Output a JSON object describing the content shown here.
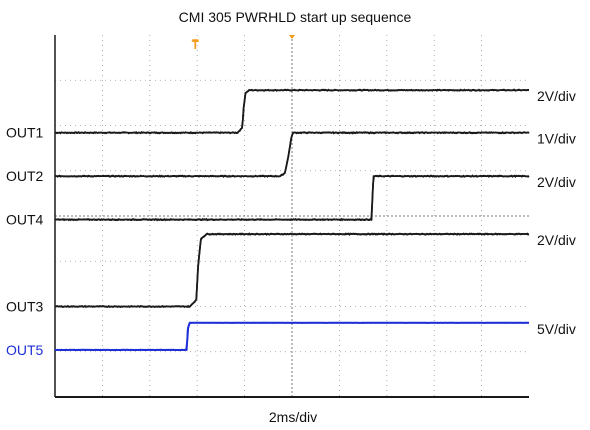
{
  "chart_data": {
    "type": "line",
    "title": "CMI 305  PWRHLD start up sequence",
    "xlabel": "2ms/div",
    "ylabel": "",
    "x_unit": "div",
    "y_unit": "div",
    "xlim": [
      0,
      10
    ],
    "ylim": [
      0,
      8
    ],
    "grid": true,
    "trigger_marker": "T",
    "series": [
      {
        "name": "OUT1",
        "scale": "2V/div",
        "color": "#1a1a1a",
        "noise": 0.012,
        "x": [
          0,
          3.85,
          3.95,
          3.98,
          4.02,
          4.1,
          10
        ],
        "y": [
          5.84,
          5.84,
          5.95,
          6.4,
          6.72,
          6.78,
          6.78
        ]
      },
      {
        "name": "OUT2",
        "scale": "1V/div",
        "color": "#1a1a1a",
        "noise": 0.012,
        "x": [
          0,
          4.75,
          4.85,
          4.92,
          4.98,
          5.02,
          10
        ],
        "y": [
          4.88,
          4.88,
          4.95,
          5.3,
          5.7,
          5.84,
          5.84
        ]
      },
      {
        "name": "OUT4",
        "scale": "2V/div",
        "color": "#1a1a1a",
        "noise": 0.012,
        "x": [
          0,
          6.68,
          6.7,
          6.72,
          10
        ],
        "y": [
          3.92,
          3.92,
          4.5,
          4.88,
          4.88
        ]
      },
      {
        "name": "OUT3",
        "scale": "2V/div",
        "color": "#1a1a1a",
        "noise": 0.012,
        "x": [
          0,
          2.85,
          2.98,
          3.02,
          3.08,
          3.2,
          10
        ],
        "y": [
          2.0,
          2.0,
          2.15,
          2.9,
          3.5,
          3.6,
          3.6
        ]
      },
      {
        "name": "OUT5",
        "scale": "5V/div",
        "color": "#1f2fd6",
        "noise": 0.003,
        "x": [
          0,
          2.78,
          2.8,
          2.84,
          10
        ],
        "y": [
          1.04,
          1.04,
          1.5,
          1.64,
          1.64
        ]
      }
    ]
  }
}
